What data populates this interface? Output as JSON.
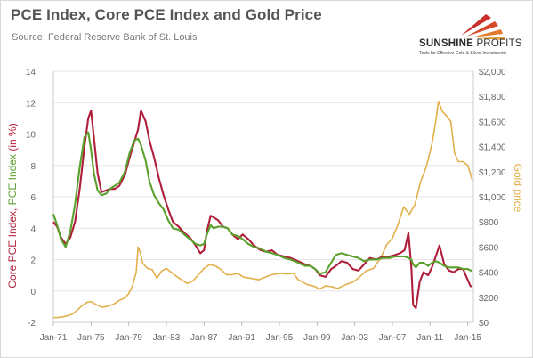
{
  "header": {
    "title": "PCE Index, Core PCE Index and Gold Price",
    "subtitle": "Source: Federal Reserve Bank of St. Louis"
  },
  "logo": {
    "name_bold": "SUNSHINE",
    "name_light": "PROFITS",
    "tagline": "Tools for Effective Gold & Silver Investments"
  },
  "colors": {
    "pce": "#5aa02c",
    "core_pce": "#b01f3a",
    "gold": "#e2b04a",
    "axis_text": "#666666",
    "grid": "#e6e6e6"
  },
  "chart_data": {
    "type": "line",
    "title": "PCE Index, Core PCE Index and Gold Price",
    "left_axis": {
      "label_parts": [
        {
          "text": "Core PCE Index",
          "series": "Core PCE Index"
        },
        {
          "text": ", ",
          "series": null
        },
        {
          "text": "PCE Index",
          "series": "PCE Index"
        },
        {
          "text": " (in %)",
          "series": null
        }
      ],
      "range": [
        -2,
        14
      ],
      "ticks": [
        -2,
        0,
        2,
        4,
        6,
        8,
        10,
        12,
        14
      ]
    },
    "right_axis": {
      "label": "Gold price",
      "range": [
        0,
        2000
      ],
      "ticks": [
        "$0",
        "$200",
        "$400",
        "$600",
        "$800",
        "$1,000",
        "$1,200",
        "$1,400",
        "$1,600",
        "$1,800",
        "$2,000"
      ]
    },
    "x_axis": {
      "range": [
        1971.0,
        2015.6
      ],
      "ticks": [
        "Jan-71",
        "Jan-75",
        "Jan-79",
        "Jan-83",
        "Jan-87",
        "Jan-91",
        "Jan-95",
        "Jan-99",
        "Jan-03",
        "Jan-07",
        "Jan-11",
        "Jan-15"
      ]
    },
    "grid": "horizontal",
    "series": [
      {
        "name": "Core PCE Index",
        "axis": "left",
        "x": [
          1971.0,
          1971.4,
          1971.8,
          1972.3,
          1972.8,
          1973.3,
          1973.8,
          1974.3,
          1974.7,
          1975.0,
          1975.3,
          1975.7,
          1976.1,
          1976.6,
          1977.0,
          1977.5,
          1978.0,
          1978.6,
          1979.1,
          1979.6,
          1980.0,
          1980.3,
          1980.8,
          1981.2,
          1981.7,
          1982.2,
          1982.7,
          1983.2,
          1983.7,
          1984.3,
          1984.9,
          1985.5,
          1986.1,
          1986.6,
          1987.0,
          1987.3,
          1987.7,
          1988.0,
          1988.5,
          1989.0,
          1989.5,
          1990.0,
          1990.6,
          1991.1,
          1991.7,
          1992.3,
          1993.0,
          1993.6,
          1994.2,
          1994.8,
          1995.5,
          1996.2,
          1997.0,
          1997.7,
          1998.3,
          1998.8,
          1999.3,
          1999.9,
          2000.5,
          2001.0,
          2001.6,
          2002.2,
          2002.8,
          2003.4,
          2004.0,
          2004.6,
          2005.3,
          2006.0,
          2006.7,
          2007.3,
          2007.8,
          2008.3,
          2008.7,
          2009.0,
          2009.2,
          2009.5,
          2009.9,
          2010.3,
          2010.8,
          2011.2,
          2011.6,
          2012.0,
          2012.5,
          2013.0,
          2013.5,
          2014.0,
          2014.5,
          2015.0,
          2015.3,
          2015.5
        ],
        "y": [
          4.4,
          4.1,
          3.4,
          3.0,
          3.4,
          4.4,
          6.5,
          9.2,
          11.0,
          11.5,
          9.8,
          7.5,
          6.3,
          6.4,
          6.5,
          6.5,
          6.7,
          7.4,
          8.5,
          9.5,
          10.3,
          11.5,
          10.8,
          9.6,
          8.5,
          7.2,
          6.1,
          5.2,
          4.4,
          4.1,
          3.7,
          3.4,
          2.9,
          2.4,
          2.6,
          3.8,
          4.8,
          4.7,
          4.5,
          4.1,
          4.0,
          3.6,
          3.3,
          3.6,
          3.3,
          2.9,
          2.6,
          2.5,
          2.6,
          2.3,
          2.2,
          2.1,
          1.9,
          1.7,
          1.6,
          1.4,
          1.0,
          0.9,
          1.4,
          1.6,
          1.9,
          1.8,
          1.4,
          1.3,
          1.7,
          2.1,
          2.0,
          2.2,
          2.2,
          2.3,
          2.4,
          2.6,
          3.7,
          1.6,
          -0.9,
          -1.1,
          0.6,
          1.2,
          1.0,
          1.5,
          2.2,
          2.9,
          1.7,
          1.3,
          1.2,
          1.4,
          1.4,
          0.7,
          0.3,
          0.3
        ]
      },
      {
        "name": "PCE Index",
        "axis": "left",
        "x": [
          1971.0,
          1971.4,
          1971.8,
          1972.3,
          1972.8,
          1973.3,
          1973.8,
          1974.3,
          1974.7,
          1975.0,
          1975.3,
          1975.7,
          1976.1,
          1976.6,
          1977.0,
          1977.5,
          1978.0,
          1978.6,
          1979.1,
          1979.6,
          1980.0,
          1980.3,
          1980.8,
          1981.2,
          1981.7,
          1982.2,
          1982.7,
          1983.2,
          1983.7,
          1984.3,
          1984.9,
          1985.5,
          1986.1,
          1986.6,
          1987.0,
          1987.3,
          1987.7,
          1988.0,
          1988.5,
          1989.0,
          1989.5,
          1990.0,
          1990.6,
          1991.1,
          1991.7,
          1992.3,
          1993.0,
          1993.6,
          1994.2,
          1994.8,
          1995.5,
          1996.2,
          1997.0,
          1997.7,
          1998.3,
          1998.8,
          1999.3,
          1999.9,
          2000.5,
          2001.0,
          2001.6,
          2002.2,
          2002.8,
          2003.4,
          2004.0,
          2004.6,
          2005.3,
          2006.0,
          2006.7,
          2007.3,
          2007.8,
          2008.3,
          2008.7,
          2009.0,
          2009.2,
          2009.5,
          2009.9,
          2010.3,
          2010.8,
          2011.2,
          2011.6,
          2012.0,
          2012.5,
          2013.0,
          2013.5,
          2014.0,
          2014.5,
          2015.0,
          2015.3,
          2015.5
        ],
        "y": [
          4.9,
          4.2,
          3.3,
          2.8,
          3.8,
          5.5,
          7.9,
          9.8,
          10.1,
          9.0,
          7.5,
          6.4,
          6.1,
          6.2,
          6.5,
          6.7,
          6.9,
          7.6,
          8.8,
          9.6,
          9.7,
          9.3,
          8.3,
          7.0,
          6.1,
          5.6,
          5.2,
          4.5,
          4.0,
          3.9,
          3.6,
          3.3,
          3.0,
          2.9,
          3.0,
          3.6,
          4.2,
          4.0,
          4.1,
          4.1,
          4.0,
          3.6,
          3.5,
          3.3,
          3.0,
          2.8,
          2.7,
          2.5,
          2.4,
          2.3,
          2.1,
          2.0,
          1.8,
          1.6,
          1.6,
          1.4,
          1.1,
          1.2,
          1.8,
          2.3,
          2.4,
          2.3,
          2.2,
          2.1,
          1.9,
          2.0,
          2.0,
          2.1,
          2.1,
          2.2,
          2.2,
          2.2,
          2.1,
          2.0,
          1.7,
          1.5,
          1.8,
          1.8,
          1.6,
          1.8,
          1.9,
          1.8,
          1.6,
          1.5,
          1.5,
          1.5,
          1.4,
          1.4,
          1.3,
          1.3
        ]
      },
      {
        "name": "Gold price",
        "axis": "right",
        "x": [
          1971.0,
          1971.6,
          1972.3,
          1973.0,
          1973.5,
          1974.0,
          1974.6,
          1975.0,
          1975.6,
          1976.2,
          1976.8,
          1977.4,
          1978.0,
          1978.6,
          1979.0,
          1979.4,
          1979.8,
          1980.0,
          1980.2,
          1980.5,
          1981.0,
          1981.5,
          1982.0,
          1982.5,
          1983.0,
          1983.5,
          1984.0,
          1984.6,
          1985.2,
          1985.8,
          1986.3,
          1987.0,
          1987.6,
          1988.2,
          1988.8,
          1989.4,
          1990.0,
          1990.6,
          1991.2,
          1992.0,
          1992.8,
          1993.5,
          1994.2,
          1995.0,
          1995.8,
          1996.5,
          1997.0,
          1997.5,
          1998.0,
          1998.6,
          1999.3,
          1999.9,
          2000.5,
          2001.2,
          2002.0,
          2002.8,
          2003.5,
          2004.2,
          2005.0,
          2005.8,
          2006.4,
          2007.0,
          2007.6,
          2008.2,
          2008.8,
          2009.4,
          2010.0,
          2010.6,
          2011.2,
          2011.6,
          2011.9,
          2012.3,
          2012.8,
          2013.2,
          2013.6,
          2014.0,
          2014.5,
          2015.0,
          2015.3,
          2015.5
        ],
        "y": [
          38,
          40,
          48,
          65,
          95,
          130,
          160,
          165,
          140,
          120,
          130,
          145,
          175,
          195,
          230,
          290,
          400,
          600,
          560,
          470,
          430,
          420,
          350,
          410,
          430,
          400,
          370,
          340,
          310,
          330,
          370,
          430,
          460,
          450,
          420,
          380,
          380,
          390,
          360,
          350,
          340,
          360,
          380,
          390,
          385,
          390,
          340,
          320,
          300,
          290,
          265,
          290,
          285,
          270,
          300,
          320,
          360,
          410,
          430,
          520,
          620,
          670,
          780,
          920,
          860,
          940,
          1120,
          1240,
          1420,
          1600,
          1760,
          1680,
          1640,
          1600,
          1350,
          1280,
          1280,
          1250,
          1180,
          1130
        ]
      }
    ]
  }
}
